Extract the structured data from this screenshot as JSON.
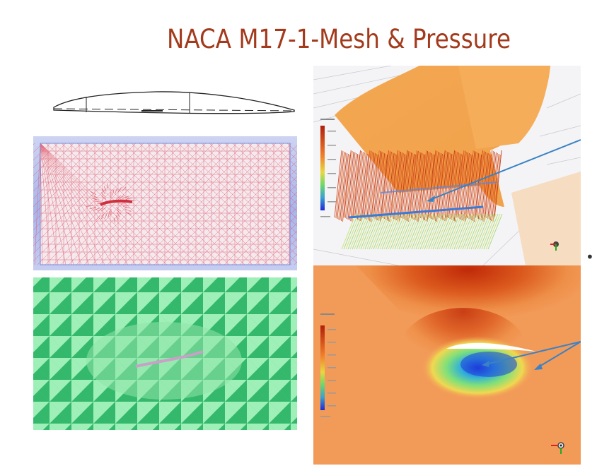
{
  "slide": {
    "title": "NACA M17-1-Mesh & Pressure",
    "bullet_glyph": "•"
  },
  "panels": {
    "airfoil_sketch": {
      "description_icon": "airfoil-profile-icon"
    },
    "triangle_mesh": {
      "description_icon": "volume-mesh-icon"
    },
    "surface_mesh": {
      "description_icon": "surface-mesh-icon"
    },
    "pressure_3d": {
      "description_icon": "pressure-contour-icon"
    },
    "pressure_2d": {
      "description_icon": "pressure-contour-icon"
    }
  },
  "colors": {
    "title": "#a33a1c",
    "arrow": "#3a82c4",
    "mesh_line": "#e05060",
    "surface_light": "#9ef0b8",
    "surface_dark": "#34b86c",
    "pressure_high": "#c8320e",
    "pressure_mid": "#f3a24e",
    "pressure_low": "#1e3cdc"
  }
}
